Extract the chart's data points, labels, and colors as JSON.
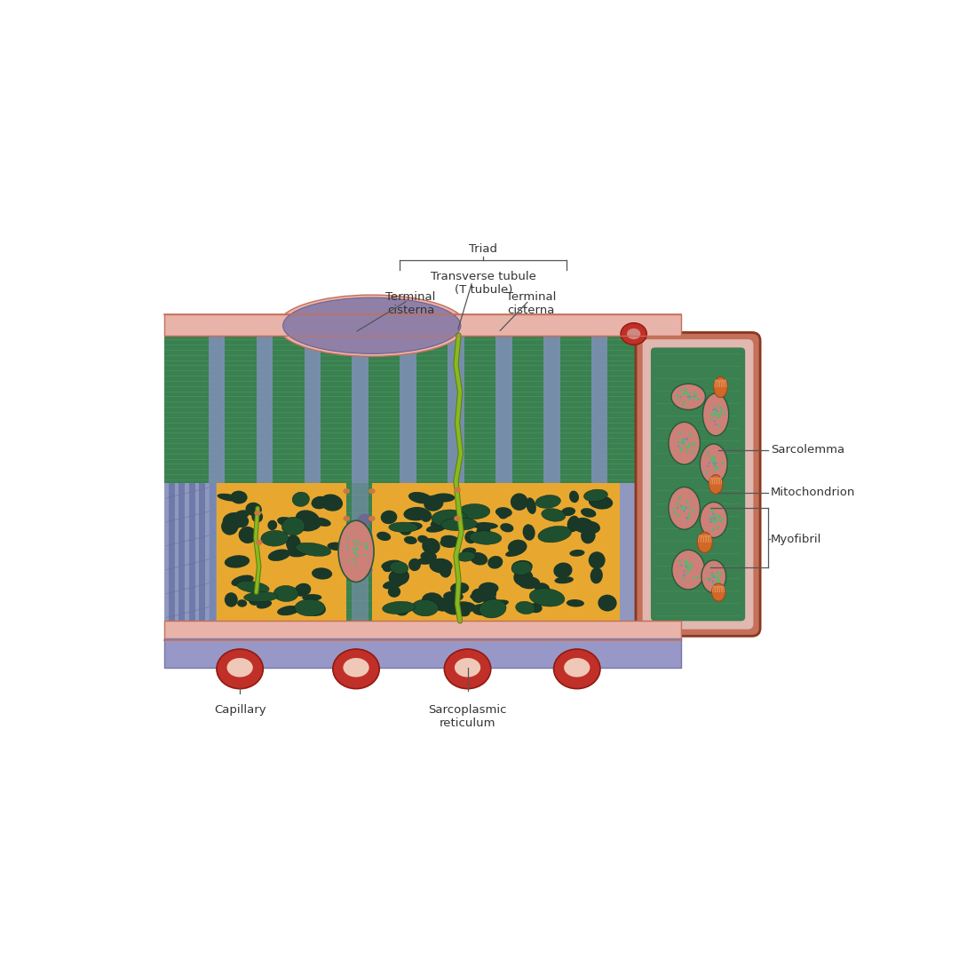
{
  "bg_color": "#ffffff",
  "labels": {
    "triad": "Triad",
    "t_tubule": "Transverse tubule\n(T tubule)",
    "terminal_cisterna_left": "Terminal\ncisterna",
    "terminal_cisterna_right": "Terminal\ncisterna",
    "sarcolemma": "Sarcolemma",
    "mitochondrion": "Mitochondrion",
    "myofibril": "Myofibril",
    "capillary": "Capillary",
    "sarcoplasmic_reticulum": "Sarcoplasmic\nreticulum"
  },
  "colors": {
    "sarcolemma_brown": "#c4705a",
    "sarcolemma_pink": "#e8b4aa",
    "sarcolemma_light": "#f0ccc0",
    "muscle_lavender": "#a8aed0",
    "muscle_mid_lavender": "#9098c0",
    "zband_blue": "#8090b8",
    "zband_dark": "#6070a0",
    "myofibril_green": "#3a8050",
    "myofibril_green_dark": "#2a6040",
    "myofibril_stripe": "#4a9a60",
    "sr_gold": "#e8a830",
    "sr_dark_hole": "#1a3828",
    "sr_myo_green": "#1e5030",
    "t_tubule_green": "#8ab820",
    "t_tubule_dark": "#5a8010",
    "cap_red": "#c03028",
    "cap_dark_red": "#901a10",
    "cap_lumen": "#f0c8b8",
    "mito_orange": "#d06828",
    "mito_light": "#e8905a",
    "myo_cross_pink": "#cc8078",
    "myo_cross_edge": "#2a5838",
    "cross_bg_pink": "#e8c0b8",
    "cross_outer": "#b86050",
    "cross_inner_pink": "#dca898",
    "purple_blob": "#9080a8",
    "purple_dark": "#706090",
    "ann_line": "#555555",
    "txt": "#333333"
  }
}
